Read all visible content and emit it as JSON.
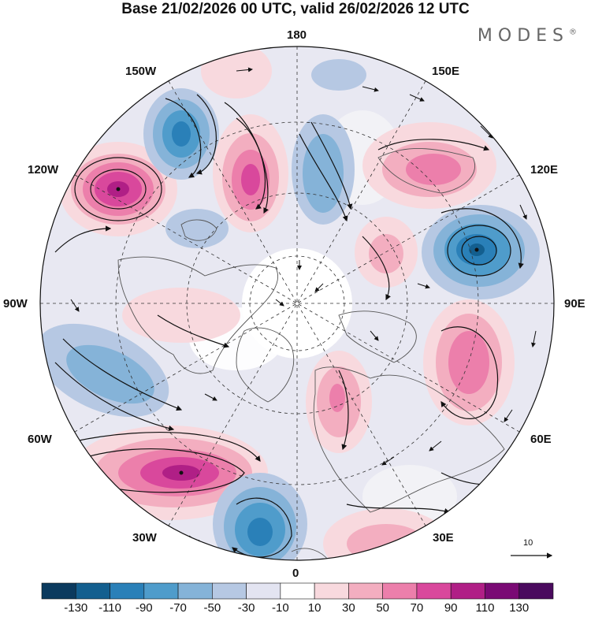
{
  "title": "Base 21/02/2026 00 UTC, valid 26/02/2026 12 UTC",
  "brand": {
    "name": "MODES",
    "mark": "®"
  },
  "map": {
    "projection": "north-polar-stereographic",
    "longitude_labels": {
      "top": "180",
      "bottom": "0",
      "left": "90W",
      "right": "90E",
      "upper_left_1": "150W",
      "upper_left_2": "120W",
      "upper_right_1": "150E",
      "upper_right_2": "120E",
      "lower_left_1": "60W",
      "lower_left_2": "30W",
      "lower_right_1": "60E",
      "lower_right_2": "30E"
    },
    "anomaly_centers": [
      {
        "name": "positive-anomaly-120W",
        "value": 110
      },
      {
        "name": "negative-anomaly-150W",
        "value": -110
      },
      {
        "name": "positive-anomaly-170W",
        "value": 90
      },
      {
        "name": "negative-anomaly-170E",
        "value": -50
      },
      {
        "name": "positive-anomaly-140E",
        "value": 70
      },
      {
        "name": "negative-anomaly-110E",
        "value": -110
      },
      {
        "name": "positive-anomaly-70E",
        "value": 70
      },
      {
        "name": "positive-anomaly-40W",
        "value": 110
      },
      {
        "name": "negative-anomaly-20W",
        "value": -110
      },
      {
        "name": "negative-anomaly-75W",
        "value": -50
      }
    ]
  },
  "reference_vector": {
    "label": "10"
  },
  "colorbar": {
    "labels": [
      "-130",
      "-110",
      "-90",
      "-70",
      "-50",
      "-30",
      "-10",
      "10",
      "30",
      "50",
      "70",
      "90",
      "110",
      "130"
    ],
    "colors": [
      "#0b3a5e",
      "#135f8f",
      "#2a80b8",
      "#4f9ccb",
      "#85b3d8",
      "#b6c8e3",
      "#e3e4f1",
      "#ffffff",
      "#f8d9de",
      "#f3aec0",
      "#ec7fab",
      "#d9489c",
      "#b01f86",
      "#7a0a74",
      "#4a0a5e"
    ]
  }
}
